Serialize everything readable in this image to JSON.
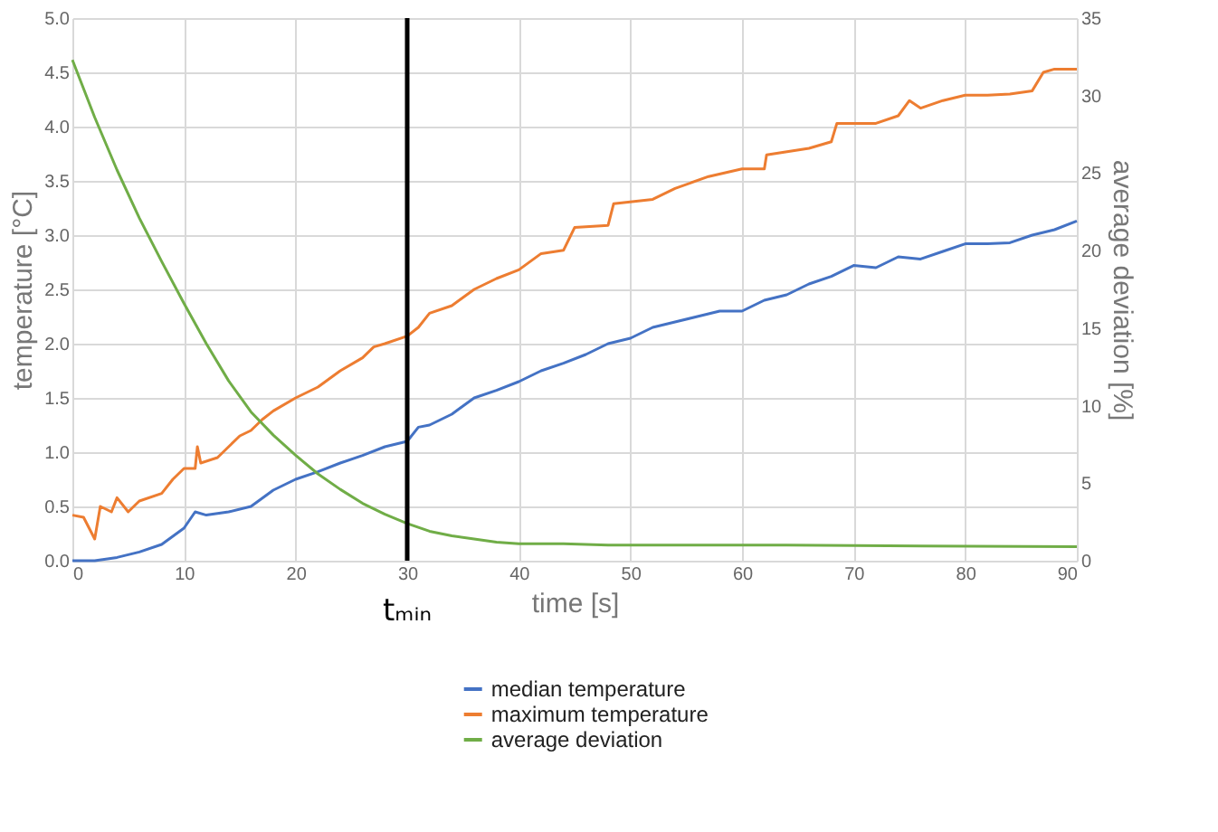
{
  "chart_data": {
    "type": "line",
    "xlabel": "time [s]",
    "ylabel": "temperature [°C]",
    "y2label": "average deviation [%]",
    "xlim": [
      0,
      90
    ],
    "xticks": [
      0,
      10,
      20,
      30,
      40,
      50,
      60,
      70,
      80,
      90
    ],
    "ylim": [
      0,
      5
    ],
    "yticks": [
      {
        "value": 0,
        "label": "0.0"
      },
      0.5,
      {
        "value": 1,
        "label": "1.0"
      },
      1.5,
      {
        "value": 2,
        "label": "2.0"
      },
      2.5,
      {
        "value": 3,
        "label": "3.0"
      },
      3.5,
      {
        "value": 4,
        "label": "4.0"
      },
      4.5,
      {
        "value": 5,
        "label": "5.0"
      }
    ],
    "y2lim": [
      0,
      35
    ],
    "y2ticks": [
      0,
      5,
      10,
      15,
      20,
      25,
      30,
      35
    ],
    "grid": true,
    "legend": "bottom",
    "line_style": "solid",
    "ref_lines": [
      {
        "axis": "x",
        "value": 30,
        "label": "tₘᵢₙ",
        "color": "#000000"
      }
    ],
    "series": [
      {
        "name": "median temperature",
        "color": "#4472c4",
        "x": [
          0,
          2,
          4,
          6,
          8,
          10,
          11,
          12,
          14,
          16,
          18,
          20,
          22,
          24,
          26,
          28,
          30,
          31,
          32,
          34,
          36,
          38,
          40,
          42,
          44,
          46,
          48,
          50,
          52,
          54,
          56,
          58,
          60,
          62,
          64,
          66,
          68,
          70,
          72,
          74,
          76,
          78,
          80,
          82,
          84,
          86,
          88,
          90
        ],
        "values": [
          0.0,
          0.0,
          0.03,
          0.08,
          0.15,
          0.3,
          0.45,
          0.42,
          0.45,
          0.5,
          0.65,
          0.75,
          0.82,
          0.9,
          0.97,
          1.05,
          1.1,
          1.23,
          1.25,
          1.35,
          1.5,
          1.57,
          1.65,
          1.75,
          1.82,
          1.9,
          2.0,
          2.05,
          2.15,
          2.2,
          2.25,
          2.3,
          2.3,
          2.4,
          2.45,
          2.55,
          2.62,
          2.72,
          2.7,
          2.8,
          2.78,
          2.85,
          2.92,
          2.92,
          2.93,
          3.0,
          3.05,
          3.13
        ]
      },
      {
        "name": "maximum temperature",
        "color": "#ed7d31",
        "x": [
          0,
          1,
          2,
          2.5,
          3.5,
          4,
          5,
          6,
          8,
          9,
          10,
          11,
          11.2,
          11.5,
          13,
          14,
          15,
          16,
          17,
          18,
          20,
          22,
          24,
          26,
          27,
          28,
          30,
          31,
          32,
          34,
          36,
          38,
          40,
          42,
          44,
          45,
          48,
          48.5,
          52,
          54,
          57,
          60,
          62,
          62.2,
          66,
          68,
          68.5,
          72,
          74,
          75,
          76,
          78,
          80,
          82,
          84,
          86,
          87,
          88,
          90
        ],
        "values": [
          0.42,
          0.4,
          0.2,
          0.5,
          0.45,
          0.58,
          0.45,
          0.55,
          0.62,
          0.75,
          0.85,
          0.85,
          1.05,
          0.9,
          0.95,
          1.05,
          1.15,
          1.2,
          1.3,
          1.38,
          1.5,
          1.6,
          1.75,
          1.87,
          1.97,
          2.0,
          2.07,
          2.15,
          2.28,
          2.35,
          2.5,
          2.6,
          2.68,
          2.83,
          2.86,
          3.07,
          3.09,
          3.29,
          3.33,
          3.43,
          3.54,
          3.61,
          3.61,
          3.74,
          3.8,
          3.86,
          4.03,
          4.03,
          4.1,
          4.24,
          4.17,
          4.24,
          4.29,
          4.29,
          4.3,
          4.33,
          4.5,
          4.53,
          4.53
        ]
      },
      {
        "name": "average deviation",
        "color": "#70ad47",
        "axis": "y2",
        "x": [
          0,
          2,
          4,
          6,
          8,
          10,
          12,
          14,
          16,
          18,
          20,
          22,
          24,
          26,
          28,
          30,
          32,
          34,
          36,
          38,
          40,
          44,
          48,
          64,
          90
        ],
        "values": [
          32.3,
          28.6,
          25.2,
          22.1,
          19.3,
          16.6,
          14.0,
          11.6,
          9.6,
          8.1,
          6.8,
          5.6,
          4.6,
          3.7,
          3.0,
          2.4,
          1.9,
          1.6,
          1.4,
          1.2,
          1.1,
          1.1,
          1.0,
          1.0,
          0.9
        ]
      }
    ]
  }
}
